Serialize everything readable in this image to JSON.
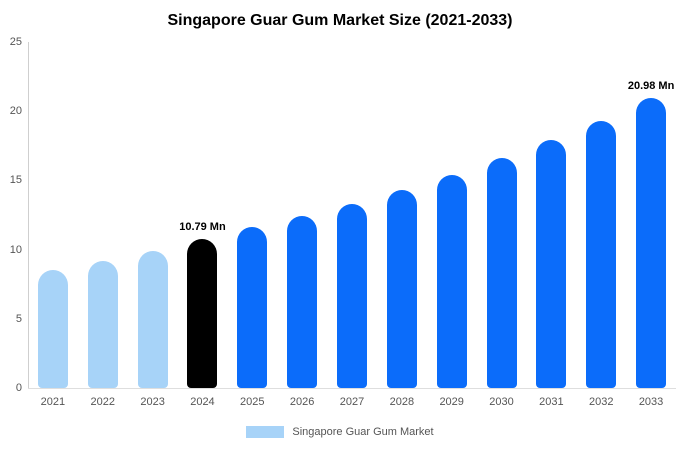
{
  "title": "Singapore Guar Gum Market Size (2021-2033)",
  "legend": {
    "label": "Singapore Guar Gum Market",
    "swatch_color": "#a7d3f8"
  },
  "colors": {
    "light_blue": "#a7d3f8",
    "dark_blue": "#0b6cfa",
    "highlight_black": "#000000"
  },
  "chart_data": {
    "type": "bar",
    "title": "Singapore Guar Gum Market Size (2021-2033)",
    "categories": [
      "2021",
      "2022",
      "2023",
      "2024",
      "2025",
      "2026",
      "2027",
      "2028",
      "2029",
      "2030",
      "2031",
      "2032",
      "2033"
    ],
    "values": [
      8.5,
      9.2,
      9.9,
      10.79,
      11.6,
      12.4,
      13.3,
      14.3,
      15.4,
      16.6,
      17.9,
      19.3,
      20.98
    ],
    "bar_colors": [
      "#a7d3f8",
      "#a7d3f8",
      "#a7d3f8",
      "#000000",
      "#0b6cfa",
      "#0b6cfa",
      "#0b6cfa",
      "#0b6cfa",
      "#0b6cfa",
      "#0b6cfa",
      "#0b6cfa",
      "#0b6cfa",
      "#0b6cfa"
    ],
    "annotations": [
      {
        "category": "2024",
        "text": "10.79 Mn"
      },
      {
        "category": "2033",
        "text": "20.98 Mn"
      }
    ],
    "unit": "Mn",
    "xlabel": "",
    "ylabel": "",
    "ylim": [
      0,
      25
    ],
    "yticks": [
      0,
      5,
      10,
      15,
      20,
      25
    ],
    "grid": false,
    "legend_entries": [
      "Singapore Guar Gum Market"
    ],
    "legend_position": "bottom"
  }
}
